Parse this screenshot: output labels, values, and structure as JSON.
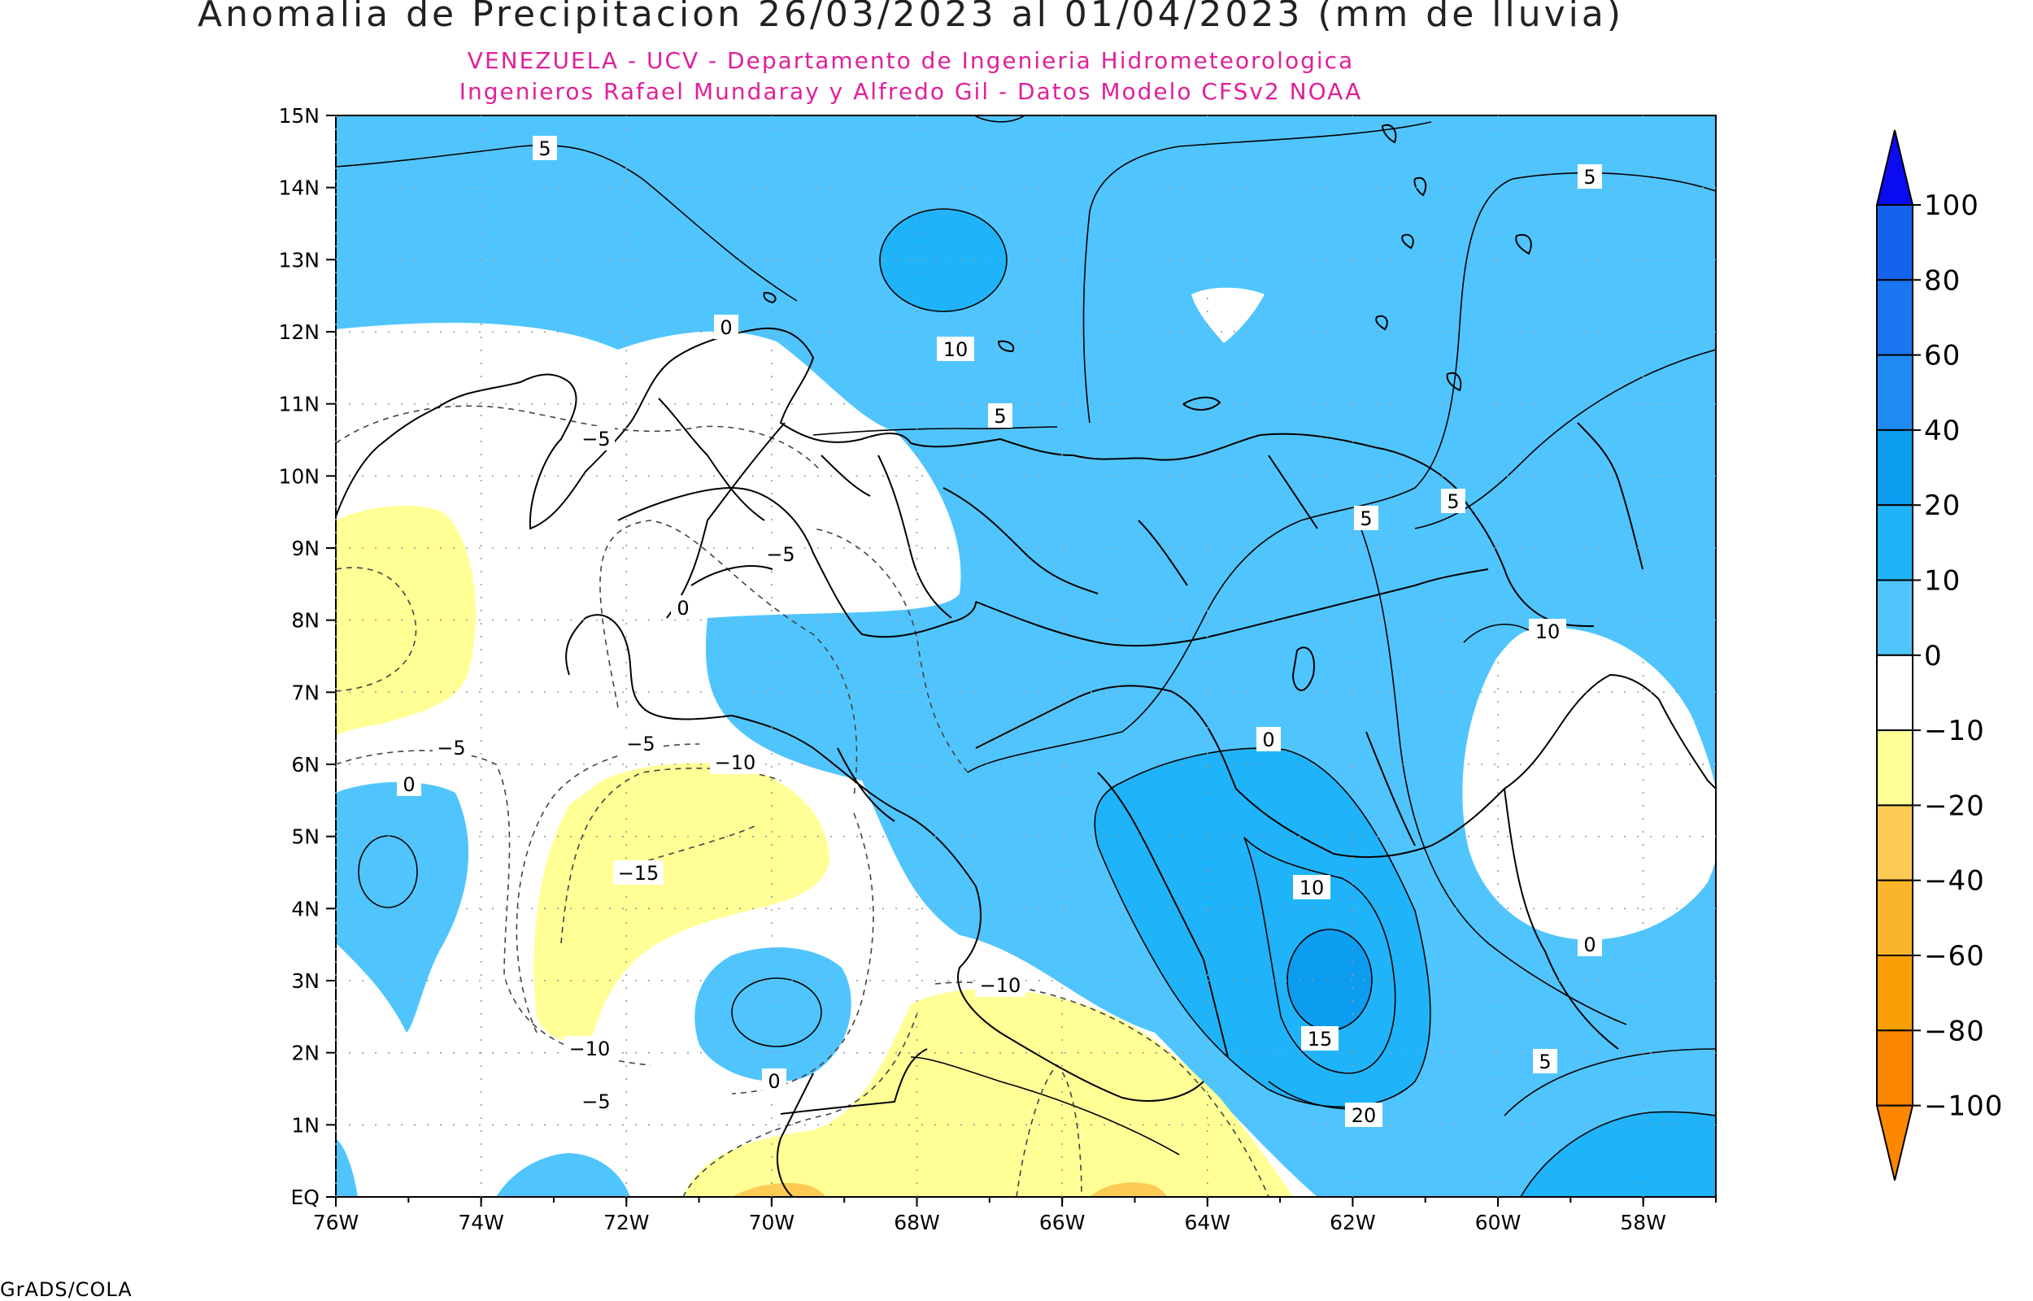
{
  "title": "Anomalia de Precipitacion 26/03/2023 al 01/04/2023 (mm de lluvia)",
  "subtitle_1": "VENEZUELA - UCV - Departamento de Ingenieria Hidrometeorologica",
  "subtitle_2": "Ingenieros Rafael Mundaray y Alfredo Gil - Datos Modelo CFSv2 NOAA",
  "footer": "GrADS/COLA",
  "map": {
    "lon_range": [
      -76,
      -57
    ],
    "lat_range": [
      0,
      15
    ],
    "x_tick_labels": [
      "76W",
      "74W",
      "72W",
      "70W",
      "68W",
      "66W",
      "64W",
      "62W",
      "60W",
      "58W"
    ],
    "y_tick_labels": [
      "EQ",
      "1N",
      "2N",
      "3N",
      "4N",
      "5N",
      "6N",
      "7N",
      "8N",
      "9N",
      "10N",
      "11N",
      "12N",
      "13N",
      "14N",
      "15N"
    ],
    "contour_labels": [
      "5",
      "5",
      "0",
      "10",
      "5",
      "5",
      "5",
      "-5",
      "-5",
      "0",
      "0",
      "-5",
      "-10",
      "-15",
      "0",
      "10",
      "15",
      "20",
      "10",
      "0",
      "5",
      "-5",
      "-10",
      "-10",
      "0",
      "-5"
    ]
  },
  "colorbar": {
    "labels": [
      "100",
      "80",
      "60",
      "40",
      "20",
      "10",
      "0",
      "-10",
      "-20",
      "-40",
      "-60",
      "-80",
      "-100"
    ],
    "colors": [
      "#0b0bf0",
      "#1462ee",
      "#1a76f2",
      "#1f8af2",
      "#0c9cf0",
      "#1fb4f9",
      "#50c5fd",
      "#ffffff",
      "#ffff96",
      "#fdcb54",
      "#fbb52b",
      "#fb9f06",
      "#ff8700",
      "#ff8700"
    ]
  },
  "fill_colors": {
    "ocean_base": "#50c5fd",
    "level_10": "#1fb4f9",
    "level_20": "#0c9cf0",
    "near_zero": "#ffffff",
    "dry_minus10": "#ffff96",
    "dry_minus20": "#fdcb54"
  }
}
